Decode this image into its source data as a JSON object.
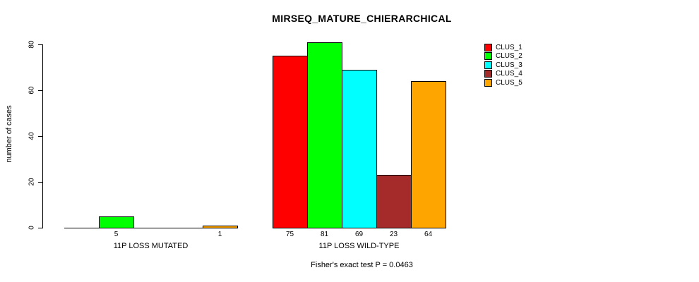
{
  "chart_data": {
    "type": "bar",
    "title": "MIRSEQ_MATURE_CHIERARCHICAL",
    "ylabel": "number of cases",
    "xlabel": "",
    "ylim": [
      0,
      80
    ],
    "yticks": [
      0,
      20,
      40,
      60,
      80
    ],
    "grid": false,
    "legend_position": "top-right",
    "series": [
      {
        "name": "CLUS_1",
        "color": "#FF0000"
      },
      {
        "name": "CLUS_2",
        "color": "#00FF00"
      },
      {
        "name": "CLUS_3",
        "color": "#00FFFF"
      },
      {
        "name": "CLUS_4",
        "color": "#A52A2A"
      },
      {
        "name": "CLUS_5",
        "color": "#FFA500"
      }
    ],
    "groups": [
      {
        "label": "11P LOSS MUTATED",
        "values": [
          0,
          5,
          0,
          0,
          1
        ],
        "bar_labels": [
          "",
          "5",
          "",
          "",
          "1"
        ]
      },
      {
        "label": "11P LOSS WILD-TYPE",
        "values": [
          75,
          81,
          69,
          23,
          64
        ],
        "bar_labels": [
          "75",
          "81",
          "69",
          "23",
          "64"
        ]
      }
    ],
    "annotation": "Fisher's exact test P = 0.0463"
  }
}
